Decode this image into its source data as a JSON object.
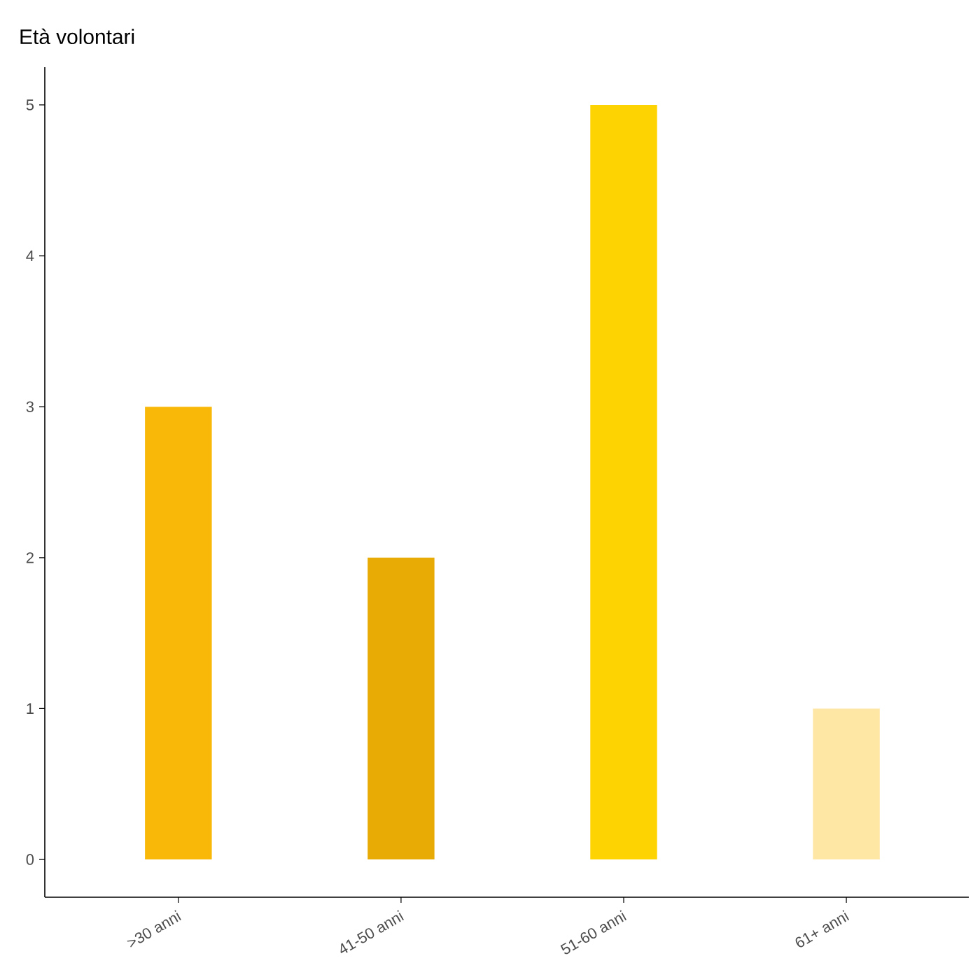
{
  "chart_data": {
    "type": "bar",
    "title": "Età volontari",
    "categories": [
      ">30 anni",
      "41-50 anni",
      "51-60 anni",
      "61+ anni"
    ],
    "values": [
      3,
      2,
      5,
      1
    ],
    "colors": [
      "#f9b807",
      "#e8ab05",
      "#fdd402",
      "#fee6a5"
    ],
    "ylim": [
      -0.25,
      5.25
    ],
    "yticks": [
      0,
      1,
      2,
      3,
      4,
      5
    ],
    "grid": false,
    "legend": false
  }
}
